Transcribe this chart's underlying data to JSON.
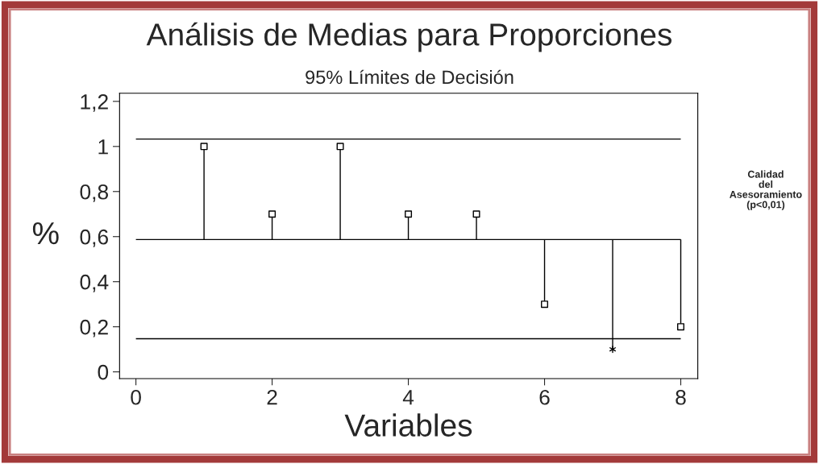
{
  "chart_data": {
    "type": "scatter",
    "title": "Análisis de Medias para Proporciones",
    "subtitle": "95% Límites de Decisión",
    "xlabel": "Variables",
    "ylabel": "%",
    "series": [
      {
        "marker": "square",
        "color": "#000000",
        "x": [
          1,
          2,
          3,
          4,
          5,
          6,
          8
        ],
        "values": [
          1,
          0.7,
          1,
          0.7,
          0.7,
          0.3,
          0.2
        ],
        "errors": [
          [
            0.587,
            1
          ],
          [
            0.587,
            0.7
          ],
          [
            0.587,
            1
          ],
          [
            0.587,
            0.7
          ],
          [
            0.587,
            0.7
          ],
          [
            0.3,
            0.587
          ],
          [
            0.2,
            0.587
          ]
        ]
      },
      {
        "marker": "cross",
        "color": "#000000",
        "x": [
          7
        ],
        "values": [
          0.1
        ],
        "errors": [
          [
            0.1,
            0.587
          ]
        ]
      }
    ],
    "ref_lines": [
      {
        "axis": "y",
        "value": 1.033,
        "color": "#000000"
      },
      {
        "axis": "y",
        "value": 0.587,
        "color": "#000000"
      },
      {
        "axis": "y",
        "value": 0.147,
        "color": "#000000"
      }
    ],
    "annotations": [
      "Calidad\ndel\nAsesoramiento\n(p<0,01)"
    ],
    "xlim": [
      -0.24,
      8.25
    ],
    "xticks": [
      0,
      2,
      4,
      6,
      8
    ],
    "ylim": [
      -0.03,
      1.236
    ],
    "yticks": [
      {
        "value": 0,
        "label": "0"
      },
      {
        "value": 0.2,
        "label": "0,2"
      },
      {
        "value": 0.4,
        "label": "0,4"
      },
      {
        "value": 0.6,
        "label": "0,6"
      },
      {
        "value": 0.8,
        "label": "0,8"
      },
      {
        "value": 1,
        "label": "1"
      },
      {
        "value": 1.2,
        "label": "1,2"
      }
    ],
    "grid": false,
    "legend": false
  }
}
